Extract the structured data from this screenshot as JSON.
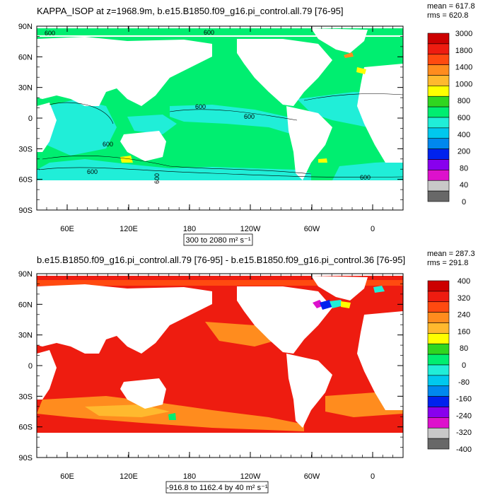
{
  "chart_data": [
    {
      "type": "heatmap",
      "title": "KAPPA_ISOP at z=1968.9m, b.e15.B1850.f09_g16.pi_control.all.79 [76-95]",
      "stats": [
        "mean = 617.8",
        "rms = 620.8"
      ],
      "range_label": "300 to 2080 m² s⁻¹",
      "x_ticks": [
        "60E",
        "120E",
        "180",
        "120W",
        "60W",
        "0"
      ],
      "y_ticks": [
        "90N",
        "60N",
        "30N",
        "0",
        "30S",
        "60S",
        "90S"
      ],
      "contour_labels": [
        "600",
        "600",
        "600",
        "600",
        "600",
        "600",
        "600",
        "600"
      ],
      "colorbar": {
        "labels": [
          "3000",
          "1800",
          "1400",
          "1000",
          "800",
          "600",
          "400",
          "200",
          "80",
          "40",
          "0"
        ],
        "colors": [
          "#cc0000",
          "#ee1c10",
          "#ff4a10",
          "#ff8c1e",
          "#ffb92e",
          "#ffff00",
          "#30d620",
          "#00ee70",
          "#20eed8",
          "#00c8ee",
          "#0088ee",
          "#0022ee",
          "#8800ee",
          "#dd11cc",
          "#c8c8c8",
          "#686868"
        ]
      }
    },
    {
      "type": "heatmap",
      "title": "b.e15.B1850.f09_g16.pi_control.all.79 [76-95] - b.e15.B1850.f09_g16.pi_control.36 [76-95]",
      "stats": [
        "mean = 287.3",
        "rms = 291.8"
      ],
      "range_label": "-916.8 to 1162.4 by 40 m² s⁻¹",
      "x_ticks": [
        "60E",
        "120E",
        "180",
        "120W",
        "60W",
        "0"
      ],
      "y_ticks": [
        "90N",
        "60N",
        "30N",
        "0",
        "30S",
        "60S",
        "90S"
      ],
      "colorbar": {
        "labels": [
          "400",
          "320",
          "240",
          "160",
          "80",
          "0",
          "-80",
          "-160",
          "-240",
          "-320",
          "-400"
        ],
        "colors": [
          "#cc0000",
          "#ee1c10",
          "#ff4a10",
          "#ff8c1e",
          "#ffb92e",
          "#ffff00",
          "#30d620",
          "#00ee70",
          "#20eed8",
          "#00c8ee",
          "#0088ee",
          "#0022ee",
          "#8800ee",
          "#dd11cc",
          "#c8c8c8",
          "#686868"
        ]
      }
    }
  ]
}
